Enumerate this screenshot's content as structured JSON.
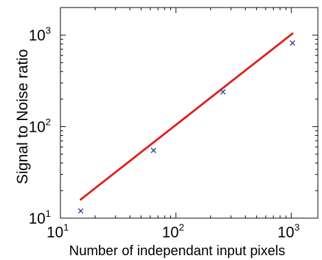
{
  "chart_data": {
    "type": "scatter",
    "title": "",
    "xlabel": "Number of independant input pixels",
    "ylabel": "Signal to Noise ratio",
    "xscale": "log",
    "yscale": "log",
    "xlim": [
      10,
      1700
    ],
    "ylim": [
      10,
      2000
    ],
    "grid": false,
    "x_ticks": [
      {
        "value": 10,
        "base": "10",
        "exp": "1"
      },
      {
        "value": 100,
        "base": "10",
        "exp": "2"
      },
      {
        "value": 1000,
        "base": "10",
        "exp": "3"
      }
    ],
    "y_ticks": [
      {
        "value": 10,
        "base": "10",
        "exp": "1"
      },
      {
        "value": 100,
        "base": "10",
        "exp": "2"
      },
      {
        "value": 1000,
        "base": "10",
        "exp": "3"
      }
    ],
    "series": [
      {
        "marker": "x",
        "color": "#2b3a9c",
        "points": [
          {
            "x": 15,
            "y": 12
          },
          {
            "x": 64,
            "y": 55
          },
          {
            "x": 256,
            "y": 240
          },
          {
            "x": 1024,
            "y": 820
          }
        ]
      },
      {
        "kind": "fit-line",
        "color": "#e0201e",
        "points": [
          {
            "x": 15,
            "y": 16
          },
          {
            "x": 1024,
            "y": 1040
          }
        ]
      }
    ]
  }
}
